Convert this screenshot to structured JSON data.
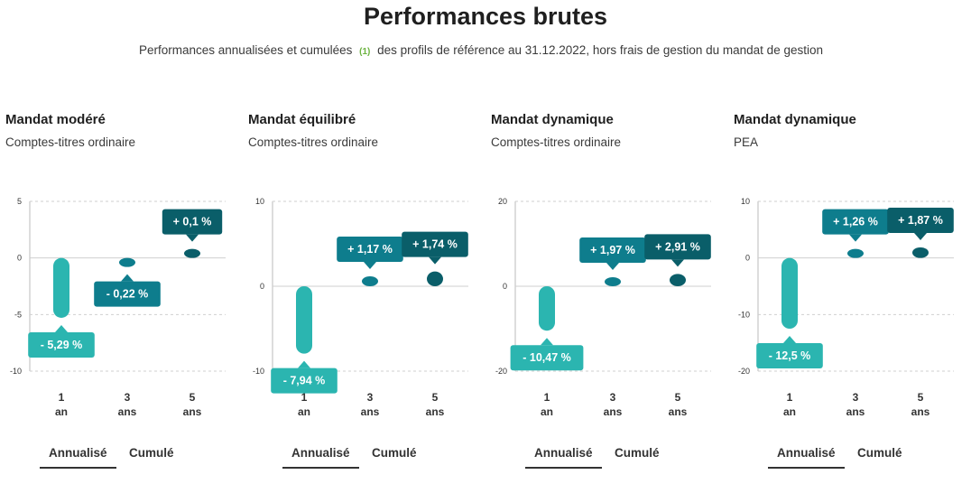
{
  "header": {
    "title": "Performances brutes",
    "subtitle_before": "Performances annualisées et cumulées",
    "subtitle_note": "(1)",
    "subtitle_after": "des profils de référence au 31.12.2022, hors frais de gestion du mandat de gestion"
  },
  "colors": {
    "light": "#2bb5b0",
    "mid": "#0e7d8d",
    "dark": "#0a5e69",
    "grid": "#cfcfcf"
  },
  "tabs": {
    "annualise": "Annualisé",
    "cumule": "Cumulé"
  },
  "panels": [
    {
      "title": "Mandat modéré",
      "subtitle": "Comptes-titres ordinaire"
    },
    {
      "title": "Mandat équilibré",
      "subtitle": "Comptes-titres ordinaire"
    },
    {
      "title": "Mandat dynamique",
      "subtitle": "Comptes-titres ordinaire"
    },
    {
      "title": "Mandat dynamique",
      "subtitle": "PEA"
    }
  ],
  "chart_data": [
    {
      "type": "bar",
      "title": "Mandat modéré",
      "categories": [
        "1 an",
        "3 ans",
        "5 ans"
      ],
      "values": [
        -5.29,
        -0.22,
        0.1
      ],
      "labels": [
        "- 5,29 %",
        "- 0,22 %",
        "+ 0,1 %"
      ],
      "ylim": [
        -10,
        5
      ],
      "yticks": [
        5,
        0,
        -5,
        -10
      ],
      "tick_labels": [
        "5",
        "0",
        "-5",
        "-10"
      ],
      "grid": true
    },
    {
      "type": "bar",
      "title": "Mandat équilibré",
      "categories": [
        "1 an",
        "3 ans",
        "5 ans"
      ],
      "values": [
        -7.94,
        1.17,
        1.74
      ],
      "labels": [
        "- 7,94 %",
        "+ 1,17 %",
        "+ 1,74 %"
      ],
      "ylim": [
        -10,
        10
      ],
      "yticks": [
        10,
        0,
        -10
      ],
      "tick_labels": [
        "10",
        "0",
        "-10"
      ],
      "grid": true
    },
    {
      "type": "bar",
      "title": "Mandat dynamique",
      "categories": [
        "1 an",
        "3 ans",
        "5 ans"
      ],
      "values": [
        -10.47,
        1.97,
        2.91
      ],
      "labels": [
        "- 10,47 %",
        "+ 1,97 %",
        "+ 2,91 %"
      ],
      "ylim": [
        -20,
        20
      ],
      "yticks": [
        20,
        0,
        -20
      ],
      "tick_labels": [
        "20",
        "0",
        "-20"
      ],
      "grid": true
    },
    {
      "type": "bar",
      "title": "Mandat dynamique",
      "categories": [
        "1 an",
        "3 ans",
        "5 ans"
      ],
      "values": [
        -12.5,
        1.26,
        1.87
      ],
      "labels": [
        "- 12,5 %",
        "+ 1,26 %",
        "+ 1,87 %"
      ],
      "ylim": [
        -20,
        10
      ],
      "yticks": [
        10,
        0,
        -10,
        -20
      ],
      "tick_labels": [
        "10",
        "0",
        "-10",
        "-20"
      ],
      "grid": true
    }
  ]
}
